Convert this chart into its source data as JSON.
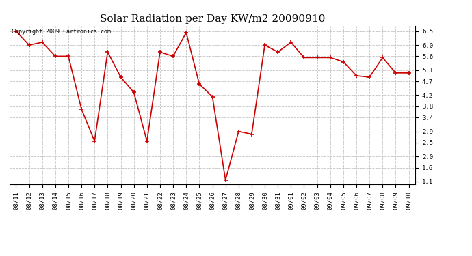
{
  "title": "Solar Radiation per Day KW/m2 20090910",
  "copyright": "Copyright 2009 Cartronics.com",
  "dates": [
    "08/11",
    "08/12",
    "08/13",
    "08/14",
    "08/15",
    "08/16",
    "08/17",
    "08/18",
    "08/19",
    "08/20",
    "08/21",
    "08/22",
    "08/23",
    "08/24",
    "08/25",
    "08/26",
    "08/27",
    "08/28",
    "08/29",
    "08/30",
    "08/31",
    "09/01",
    "09/02",
    "09/03",
    "09/04",
    "09/05",
    "09/06",
    "09/07",
    "09/08",
    "09/09",
    "09/10"
  ],
  "values": [
    6.5,
    6.0,
    6.1,
    5.6,
    5.6,
    3.7,
    2.55,
    5.75,
    4.85,
    4.3,
    2.55,
    5.75,
    5.6,
    6.45,
    4.6,
    4.15,
    1.15,
    2.9,
    2.8,
    6.0,
    5.75,
    6.1,
    5.55,
    5.55,
    5.55,
    5.4,
    4.9,
    4.85,
    5.55,
    5.0,
    5.0
  ],
  "line_color": "#cc0000",
  "marker_color": "#cc0000",
  "background_color": "#ffffff",
  "grid_color": "#bbbbbb",
  "ylim": [
    1.0,
    6.7
  ],
  "yticks": [
    1.1,
    1.6,
    2.0,
    2.5,
    2.9,
    3.4,
    3.8,
    4.2,
    4.7,
    5.1,
    5.6,
    6.0,
    6.5
  ],
  "title_fontsize": 11,
  "copyright_fontsize": 6,
  "tick_fontsize": 6.5,
  "figsize": [
    6.9,
    3.75
  ],
  "dpi": 100
}
